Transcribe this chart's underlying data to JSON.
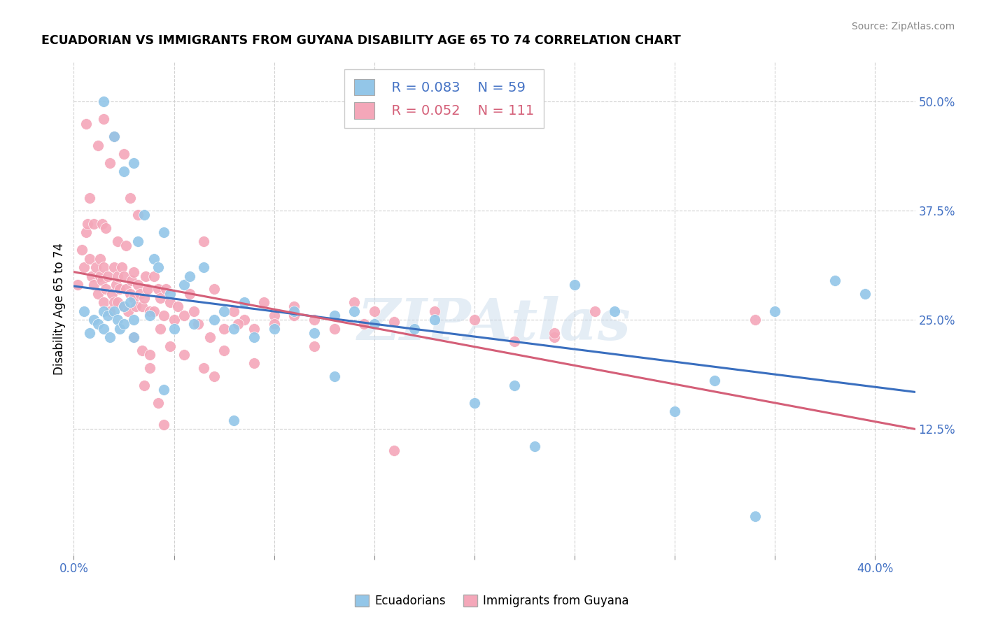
{
  "title": "ECUADORIAN VS IMMIGRANTS FROM GUYANA DISABILITY AGE 65 TO 74 CORRELATION CHART",
  "source": "Source: ZipAtlas.com",
  "ylabel": "Disability Age 65 to 74",
  "yticks": [
    0.125,
    0.25,
    0.375,
    0.5
  ],
  "ytick_labels": [
    "12.5%",
    "25.0%",
    "37.5%",
    "50.0%"
  ],
  "xlim": [
    0.0,
    0.42
  ],
  "ylim": [
    -0.02,
    0.545
  ],
  "blue_color": "#93c6e8",
  "pink_color": "#f4a7b9",
  "blue_line_color": "#3a6fbf",
  "pink_line_color": "#d45f78",
  "legend_blue_r": "R = 0.083",
  "legend_blue_n": "N = 59",
  "legend_pink_r": "R = 0.052",
  "legend_pink_n": "N = 111",
  "watermark": "ZIPAtlas",
  "blue_x": [
    0.005,
    0.008,
    0.01,
    0.012,
    0.015,
    0.015,
    0.017,
    0.018,
    0.02,
    0.022,
    0.023,
    0.025,
    0.025,
    0.028,
    0.03,
    0.03,
    0.032,
    0.035,
    0.038,
    0.04,
    0.042,
    0.045,
    0.048,
    0.05,
    0.055,
    0.058,
    0.06,
    0.065,
    0.07,
    0.075,
    0.08,
    0.085,
    0.09,
    0.1,
    0.11,
    0.12,
    0.13,
    0.14,
    0.15,
    0.17,
    0.18,
    0.2,
    0.22,
    0.25,
    0.27,
    0.3,
    0.32,
    0.35,
    0.38,
    0.395,
    0.015,
    0.02,
    0.025,
    0.03,
    0.045,
    0.08,
    0.13,
    0.23,
    0.34
  ],
  "blue_y": [
    0.26,
    0.235,
    0.25,
    0.245,
    0.24,
    0.26,
    0.255,
    0.23,
    0.26,
    0.25,
    0.24,
    0.265,
    0.245,
    0.27,
    0.25,
    0.23,
    0.34,
    0.37,
    0.255,
    0.32,
    0.31,
    0.35,
    0.28,
    0.24,
    0.29,
    0.3,
    0.245,
    0.31,
    0.25,
    0.26,
    0.24,
    0.27,
    0.23,
    0.24,
    0.26,
    0.235,
    0.255,
    0.26,
    0.245,
    0.24,
    0.25,
    0.155,
    0.175,
    0.29,
    0.26,
    0.145,
    0.18,
    0.26,
    0.295,
    0.28,
    0.5,
    0.46,
    0.42,
    0.43,
    0.17,
    0.135,
    0.185,
    0.105,
    0.025
  ],
  "pink_x": [
    0.002,
    0.004,
    0.005,
    0.006,
    0.007,
    0.008,
    0.009,
    0.01,
    0.011,
    0.012,
    0.013,
    0.013,
    0.014,
    0.015,
    0.015,
    0.016,
    0.017,
    0.018,
    0.019,
    0.02,
    0.02,
    0.021,
    0.022,
    0.022,
    0.023,
    0.024,
    0.025,
    0.025,
    0.026,
    0.027,
    0.028,
    0.029,
    0.03,
    0.03,
    0.031,
    0.032,
    0.033,
    0.034,
    0.035,
    0.036,
    0.037,
    0.038,
    0.04,
    0.04,
    0.042,
    0.043,
    0.045,
    0.046,
    0.048,
    0.05,
    0.052,
    0.055,
    0.058,
    0.06,
    0.062,
    0.065,
    0.068,
    0.07,
    0.075,
    0.08,
    0.085,
    0.09,
    0.095,
    0.1,
    0.11,
    0.12,
    0.13,
    0.14,
    0.15,
    0.16,
    0.18,
    0.2,
    0.22,
    0.24,
    0.012,
    0.015,
    0.018,
    0.02,
    0.025,
    0.028,
    0.032,
    0.035,
    0.038,
    0.042,
    0.045,
    0.006,
    0.008,
    0.01,
    0.014,
    0.016,
    0.022,
    0.026,
    0.03,
    0.034,
    0.038,
    0.043,
    0.048,
    0.055,
    0.065,
    0.07,
    0.075,
    0.082,
    0.09,
    0.1,
    0.11,
    0.12,
    0.145,
    0.16,
    0.24,
    0.34,
    0.26
  ],
  "pink_y": [
    0.29,
    0.33,
    0.31,
    0.35,
    0.36,
    0.32,
    0.3,
    0.29,
    0.31,
    0.28,
    0.3,
    0.32,
    0.295,
    0.27,
    0.31,
    0.285,
    0.3,
    0.26,
    0.28,
    0.27,
    0.31,
    0.29,
    0.3,
    0.27,
    0.285,
    0.31,
    0.265,
    0.3,
    0.285,
    0.26,
    0.28,
    0.295,
    0.275,
    0.305,
    0.265,
    0.29,
    0.28,
    0.265,
    0.275,
    0.3,
    0.285,
    0.26,
    0.3,
    0.26,
    0.285,
    0.275,
    0.255,
    0.285,
    0.27,
    0.25,
    0.265,
    0.255,
    0.28,
    0.26,
    0.245,
    0.34,
    0.23,
    0.285,
    0.24,
    0.26,
    0.25,
    0.24,
    0.27,
    0.255,
    0.265,
    0.25,
    0.24,
    0.27,
    0.26,
    0.248,
    0.26,
    0.25,
    0.225,
    0.23,
    0.45,
    0.48,
    0.43,
    0.46,
    0.44,
    0.39,
    0.37,
    0.175,
    0.195,
    0.155,
    0.13,
    0.475,
    0.39,
    0.36,
    0.36,
    0.355,
    0.34,
    0.335,
    0.23,
    0.215,
    0.21,
    0.24,
    0.22,
    0.21,
    0.195,
    0.185,
    0.215,
    0.245,
    0.2,
    0.245,
    0.255,
    0.22,
    0.245,
    0.1,
    0.235,
    0.25,
    0.26
  ]
}
